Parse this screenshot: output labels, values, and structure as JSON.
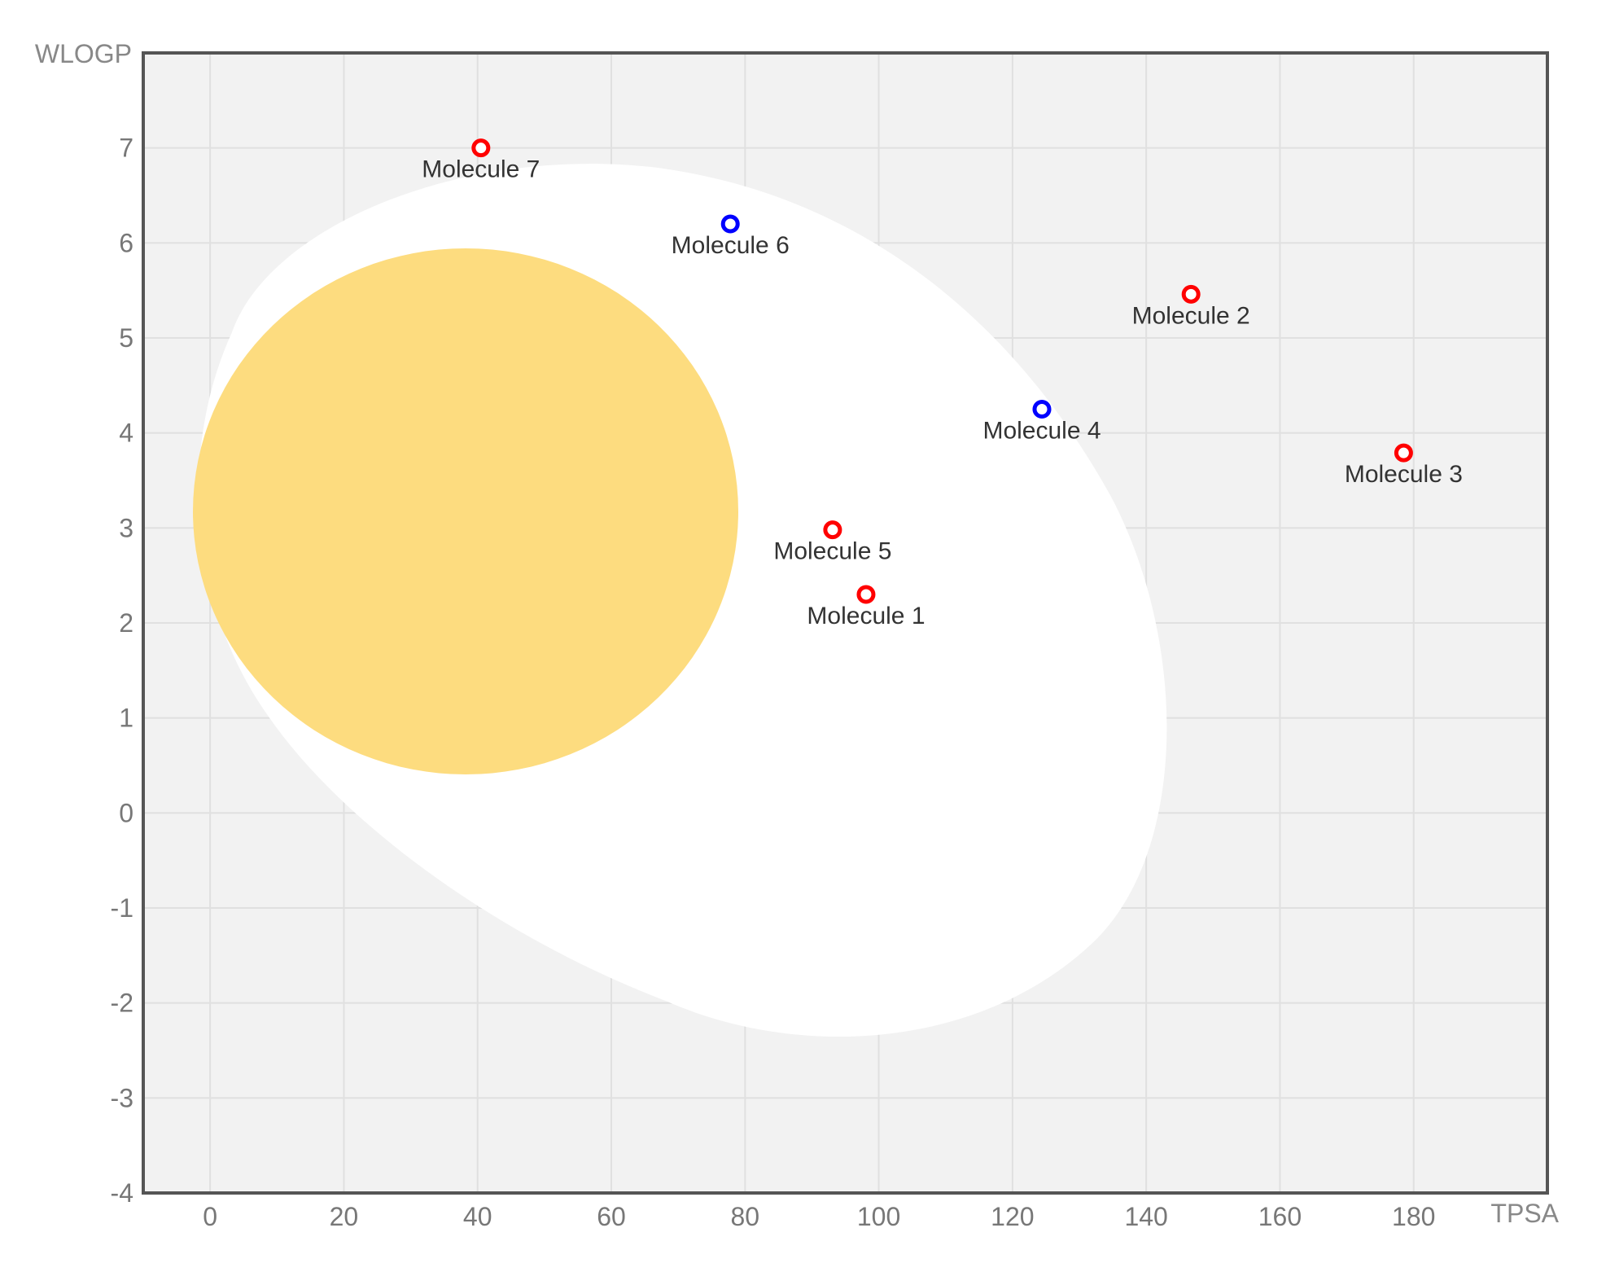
{
  "chart_data": {
    "type": "scatter",
    "title": "",
    "xlabel": "TPSA",
    "ylabel": "WLOGP",
    "xlim": [
      -10,
      200
    ],
    "ylim": [
      -4,
      8
    ],
    "xticks": [
      0,
      20,
      40,
      60,
      80,
      100,
      120,
      140,
      160,
      180
    ],
    "yticks": [
      -4,
      -3,
      -2,
      -1,
      0,
      1,
      2,
      3,
      4,
      5,
      6,
      7
    ],
    "grid": true,
    "colors": {
      "plot_background": "#f2f2f2",
      "white_region": "#ffffff",
      "yolk_region": "#fddc7f",
      "red_point": "#ff0000",
      "blue_point": "#0000ff",
      "axis_border": "#555555"
    },
    "points": [
      {
        "label": "Molecule 1",
        "x": 98.1,
        "y": 2.3,
        "color": "red"
      },
      {
        "label": "Molecule 2",
        "x": 146.7,
        "y": 5.46,
        "color": "red"
      },
      {
        "label": "Molecule 3",
        "x": 178.5,
        "y": 3.79,
        "color": "red"
      },
      {
        "label": "Molecule 4",
        "x": 124.4,
        "y": 4.25,
        "color": "blue"
      },
      {
        "label": "Molecule 5",
        "x": 93.1,
        "y": 2.98,
        "color": "red"
      },
      {
        "label": "Molecule 6",
        "x": 77.8,
        "y": 6.2,
        "color": "blue"
      },
      {
        "label": "Molecule 7",
        "x": 40.5,
        "y": 7.0,
        "color": "red"
      }
    ]
  }
}
